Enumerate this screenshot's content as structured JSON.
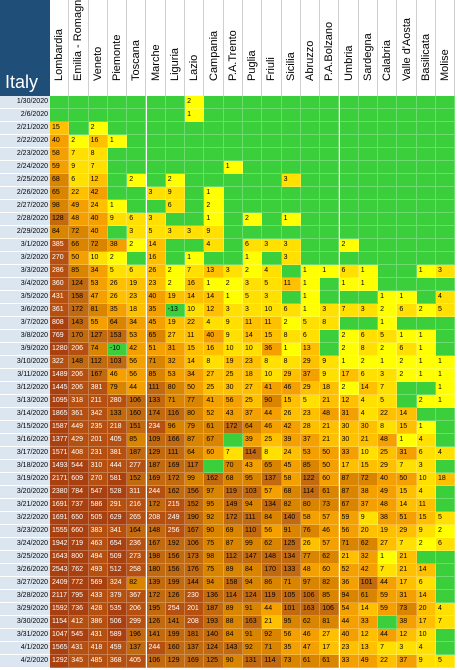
{
  "sheet": {
    "country_label": "Italy",
    "regions": [
      "Lombardia",
      "Emilia - Romagna",
      "Veneto",
      "Piemonte",
      "Toscana",
      "Marche",
      "Liguria",
      "Lazio",
      "Campania",
      "P.A.Trento",
      "Puglia",
      "Friuli",
      "Sicilia",
      "Abruzzo",
      "P.A.Bolzano",
      "Umbria",
      "Sardegna",
      "Calabria",
      "Valle d'Aosta",
      "Basilicata",
      "Molise"
    ],
    "dates": [
      "1/30/2020",
      "2/6/2020",
      "2/21/2020",
      "2/22/2020",
      "2/23/2020",
      "2/24/2020",
      "2/25/2020",
      "2/26/2020",
      "2/27/2020",
      "2/28/2020",
      "2/29/2020",
      "3/1/2020",
      "3/2/2020",
      "3/3/2020",
      "3/4/2020",
      "3/5/2020",
      "3/6/2020",
      "3/7/2020",
      "3/8/2020",
      "3/9/2020",
      "3/10/2020",
      "3/11/2020",
      "3/12/2020",
      "3/13/2020",
      "3/14/2020",
      "3/15/2020",
      "3/16/2020",
      "3/17/2020",
      "3/18/2020",
      "3/19/2020",
      "3/20/2020",
      "3/21/2020",
      "3/22/2020",
      "3/23/2020",
      "3/24/2020",
      "3/25/2020",
      "3/26/2020",
      "3/27/2020",
      "3/28/2020",
      "3/29/2020",
      "3/30/2020",
      "3/31/2020",
      "4/1/2020",
      "4/2/2020"
    ],
    "values": [
      [
        "",
        "",
        "",
        "",
        "",
        "",
        "",
        "2",
        "",
        "",
        "",
        "",
        "",
        "",
        "",
        "",
        "",
        "",
        "",
        "",
        ""
      ],
      [
        "",
        "",
        "",
        "",
        "",
        "",
        "",
        "1",
        "",
        "",
        "",
        "",
        "",
        "",
        "",
        "",
        "",
        "",
        "",
        "",
        ""
      ],
      [
        "15",
        "",
        "2",
        "",
        "",
        "",
        "",
        "",
        "",
        "",
        "",
        "",
        "",
        "",
        "",
        "",
        "",
        "",
        "",
        "",
        ""
      ],
      [
        "40",
        "2",
        "16",
        "1",
        "",
        "",
        "",
        "",
        "",
        "",
        "",
        "",
        "",
        "",
        "",
        "",
        "",
        "",
        "",
        "",
        ""
      ],
      [
        "58",
        "7",
        "8",
        "",
        "",
        "",
        "",
        "",
        "",
        "",
        "",
        "",
        "",
        "",
        "",
        "",
        "",
        "",
        "",
        "",
        ""
      ],
      [
        "59",
        "9",
        "7",
        "",
        "",
        "",
        "",
        "",
        "",
        "1",
        "",
        "",
        "",
        "",
        "",
        "",
        "",
        "",
        "",
        "",
        ""
      ],
      [
        "68",
        "6",
        "12",
        "",
        "2",
        "",
        "2",
        "",
        "",
        "",
        "",
        "",
        "3",
        "",
        "",
        "",
        "",
        "",
        "",
        "",
        ""
      ],
      [
        "65",
        "22",
        "42",
        "",
        "",
        "3",
        "9",
        "",
        "1",
        "",
        "",
        "",
        "",
        "",
        "",
        "",
        "",
        "",
        "",
        "",
        ""
      ],
      [
        "98",
        "49",
        "24",
        "1",
        "",
        "",
        "6",
        "",
        "2",
        "",
        "",
        "",
        "",
        "",
        "",
        "",
        "",
        "",
        "",
        "",
        ""
      ],
      [
        "128",
        "48",
        "40",
        "9",
        "6",
        "3",
        "",
        "",
        "1",
        "",
        "2",
        "",
        "1",
        "",
        "",
        "",
        "",
        "",
        "",
        "",
        ""
      ],
      [
        "84",
        "72",
        "40",
        "",
        "3",
        "5",
        "3",
        "3",
        "9",
        "",
        "",
        "",
        "",
        "",
        "",
        "",
        "",
        "",
        "",
        "",
        ""
      ],
      [
        "385",
        "66",
        "72",
        "38",
        "2",
        "14",
        "",
        "",
        "4",
        "",
        "6",
        "3",
        "3",
        "",
        "",
        "2",
        "",
        "",
        "",
        "",
        ""
      ],
      [
        "270",
        "50",
        "10",
        "2",
        "",
        "16",
        "",
        "1",
        "",
        "",
        "1",
        "",
        "3",
        "",
        "",
        "",
        "",
        "",
        "",
        "",
        ""
      ],
      [
        "286",
        "85",
        "34",
        "5",
        "6",
        "26",
        "2",
        "7",
        "13",
        "3",
        "2",
        "4",
        "",
        "1",
        "1",
        "6",
        "1",
        "",
        "",
        "1",
        "3"
      ],
      [
        "360",
        "124",
        "53",
        "26",
        "19",
        "23",
        "2",
        "16",
        "1",
        "2",
        "3",
        "5",
        "11",
        "1",
        "",
        "1",
        "1",
        "",
        "",
        "",
        ""
      ],
      [
        "431",
        "158",
        "47",
        "26",
        "23",
        "40",
        "19",
        "14",
        "14",
        "1",
        "5",
        "3",
        "",
        "1",
        "",
        "",
        "",
        "1",
        "1",
        "",
        "4"
      ],
      [
        "361",
        "172",
        "81",
        "35",
        "18",
        "35",
        "-13",
        "10",
        "12",
        "3",
        "3",
        "10",
        "6",
        "1",
        "3",
        "7",
        "3",
        "2",
        "6",
        "2",
        "5"
      ],
      [
        "808",
        "143",
        "55",
        "64",
        "34",
        "45",
        "19",
        "22",
        "4",
        "9",
        "11",
        "11",
        "2",
        "5",
        "8",
        "",
        "",
        "1",
        "",
        "",
        ""
      ],
      [
        "769",
        "170",
        "127",
        "153",
        "53",
        "65",
        "27",
        "11",
        "40",
        "9",
        "14",
        "15",
        "8",
        "6",
        "",
        "2",
        "6",
        "5",
        "1",
        "1",
        ""
      ],
      [
        "1280",
        "206",
        "74",
        "-10",
        "42",
        "51",
        "31",
        "15",
        "16",
        "10",
        "10",
        "36",
        "1",
        "13",
        "",
        "2",
        "8",
        "2",
        "6",
        "1",
        ""
      ],
      [
        "322",
        "148",
        "112",
        "103",
        "56",
        "71",
        "32",
        "14",
        "8",
        "19",
        "23",
        "8",
        "8",
        "29",
        "9",
        "1",
        "2",
        "1",
        "2",
        "1",
        "1"
      ],
      [
        "1489",
        "206",
        "167",
        "46",
        "56",
        "85",
        "53",
        "34",
        "27",
        "25",
        "18",
        "10",
        "29",
        "37",
        "9",
        "17",
        "6",
        "3",
        "2",
        "1",
        "1"
      ],
      [
        "1445",
        "206",
        "381",
        "79",
        "44",
        "111",
        "80",
        "50",
        "25",
        "30",
        "27",
        "41",
        "46",
        "29",
        "18",
        "2",
        "14",
        "7",
        "",
        "",
        "1"
      ],
      [
        "1095",
        "318",
        "211",
        "280",
        "106",
        "133",
        "71",
        "77",
        "41",
        "56",
        "25",
        "90",
        "15",
        "5",
        "21",
        "12",
        "4",
        "5",
        "",
        "2",
        "1"
      ],
      [
        "1865",
        "361",
        "342",
        "133",
        "160",
        "174",
        "116",
        "80",
        "52",
        "43",
        "37",
        "44",
        "26",
        "23",
        "48",
        "31",
        "4",
        "22",
        "14",
        "",
        ""
      ],
      [
        "1587",
        "449",
        "235",
        "218",
        "151",
        "234",
        "96",
        "79",
        "61",
        "172",
        "64",
        "46",
        "42",
        "28",
        "21",
        "30",
        "30",
        "8",
        "15",
        "1",
        ""
      ],
      [
        "1377",
        "429",
        "201",
        "405",
        "85",
        "109",
        "166",
        "87",
        "67",
        "",
        "39",
        "25",
        "39",
        "37",
        "21",
        "30",
        "21",
        "48",
        "1",
        "4",
        ""
      ],
      [
        "1571",
        "408",
        "231",
        "381",
        "187",
        "129",
        "111",
        "64",
        "60",
        "7",
        "114",
        "8",
        "24",
        "53",
        "50",
        "33",
        "10",
        "25",
        "31",
        "6",
        "4"
      ],
      [
        "1493",
        "544",
        "310",
        "444",
        "277",
        "187",
        "169",
        "117",
        "",
        "70",
        "43",
        "65",
        "45",
        "85",
        "50",
        "17",
        "15",
        "29",
        "7",
        "3",
        ""
      ],
      [
        "2171",
        "609",
        "270",
        "581",
        "152",
        "169",
        "172",
        "99",
        "162",
        "68",
        "95",
        "137",
        "58",
        "122",
        "60",
        "87",
        "72",
        "40",
        "50",
        "10",
        "18"
      ],
      [
        "2380",
        "784",
        "547",
        "528",
        "311",
        "244",
        "162",
        "156",
        "97",
        "119",
        "103",
        "57",
        "68",
        "114",
        "61",
        "87",
        "38",
        "49",
        "15",
        "4",
        ""
      ],
      [
        "1691",
        "737",
        "586",
        "291",
        "216",
        "172",
        "215",
        "152",
        "95",
        "149",
        "94",
        "134",
        "82",
        "80",
        "73",
        "67",
        "37",
        "48",
        "14",
        "11",
        ""
      ],
      [
        "1691",
        "650",
        "505",
        "629",
        "265",
        "208",
        "249",
        "190",
        "92",
        "172",
        "111",
        "84",
        "140",
        "58",
        "57",
        "59",
        "9",
        "38",
        "51",
        "15",
        "5"
      ],
      [
        "1555",
        "660",
        "383",
        "341",
        "164",
        "148",
        "256",
        "167",
        "90",
        "69",
        "110",
        "56",
        "91",
        "76",
        "46",
        "56",
        "20",
        "19",
        "29",
        "9",
        "2"
      ],
      [
        "1942",
        "719",
        "463",
        "654",
        "236",
        "167",
        "192",
        "106",
        "75",
        "87",
        "99",
        "62",
        "125",
        "26",
        "57",
        "71",
        "62",
        "27",
        "7",
        "2",
        "6"
      ],
      [
        "1643",
        "800",
        "494",
        "509",
        "273",
        "198",
        "156",
        "173",
        "98",
        "112",
        "147",
        "148",
        "134",
        "77",
        "62",
        "21",
        "32",
        "1",
        "21",
        "",
        ""
      ],
      [
        "2543",
        "762",
        "493",
        "512",
        "258",
        "180",
        "156",
        "176",
        "75",
        "89",
        "84",
        "170",
        "133",
        "48",
        "60",
        "52",
        "42",
        "7",
        "21",
        "14",
        ""
      ],
      [
        "2409",
        "772",
        "569",
        "324",
        "82",
        "139",
        "199",
        "144",
        "94",
        "158",
        "94",
        "86",
        "71",
        "97",
        "82",
        "36",
        "101",
        "44",
        "17",
        "6",
        ""
      ],
      [
        "2117",
        "795",
        "433",
        "379",
        "367",
        "172",
        "126",
        "230",
        "136",
        "114",
        "124",
        "119",
        "105",
        "106",
        "85",
        "94",
        "61",
        "59",
        "31",
        "14",
        ""
      ],
      [
        "1592",
        "736",
        "428",
        "535",
        "206",
        "195",
        "254",
        "201",
        "187",
        "89",
        "91",
        "44",
        "101",
        "163",
        "106",
        "54",
        "14",
        "59",
        "73",
        "20",
        "4"
      ],
      [
        "1154",
        "412",
        "386",
        "506",
        "299",
        "126",
        "141",
        "208",
        "193",
        "88",
        "163",
        "21",
        "95",
        "62",
        "81",
        "44",
        "33",
        "",
        "38",
        "17",
        "7"
      ],
      [
        "1047",
        "545",
        "431",
        "589",
        "196",
        "141",
        "199",
        "181",
        "140",
        "84",
        "91",
        "92",
        "56",
        "46",
        "27",
        "40",
        "12",
        "44",
        "12",
        "10",
        ""
      ],
      [
        "1565",
        "431",
        "418",
        "459",
        "137",
        "244",
        "160",
        "137",
        "124",
        "143",
        "92",
        "71",
        "35",
        "47",
        "17",
        "23",
        "13",
        "7",
        "3",
        "4",
        ""
      ],
      [
        "1292",
        "345",
        "485",
        "368",
        "405",
        "106",
        "129",
        "169",
        "125",
        "90",
        "131",
        "114",
        "73",
        "61",
        "61",
        "33",
        "49",
        "22",
        "37",
        "9",
        "5"
      ]
    ]
  }
}
